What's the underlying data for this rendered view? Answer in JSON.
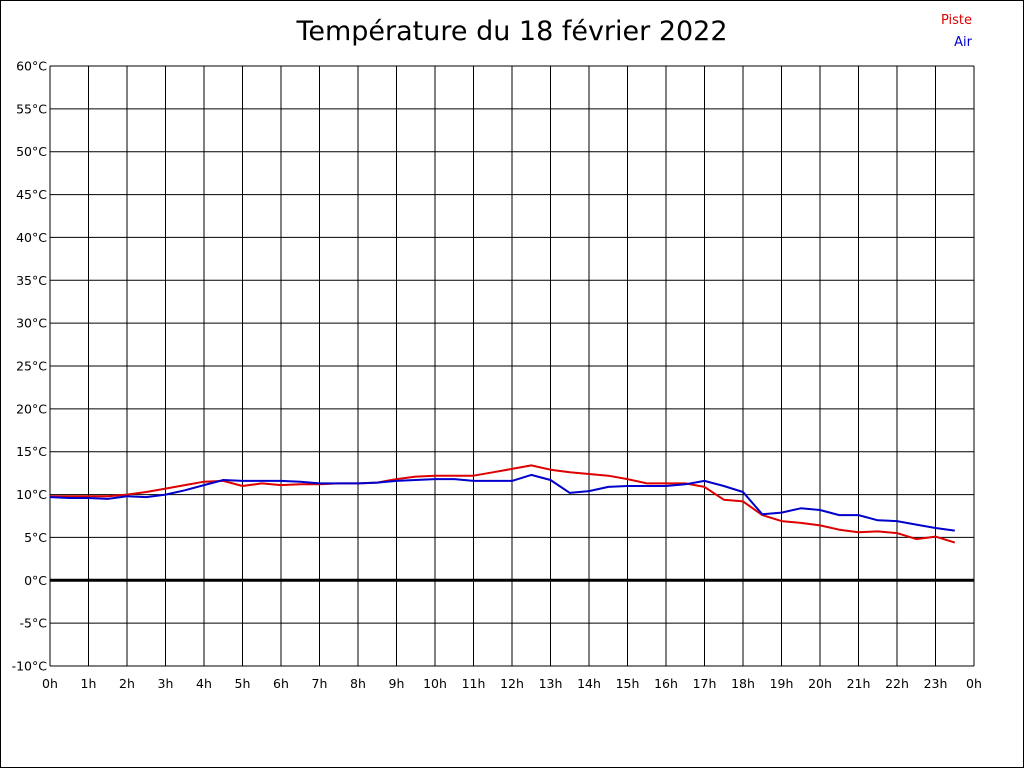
{
  "chart_data": {
    "type": "line",
    "title": "Température du 18 février 2022",
    "x_ticks": [
      "0h",
      "1h",
      "2h",
      "3h",
      "4h",
      "5h",
      "6h",
      "7h",
      "8h",
      "9h",
      "10h",
      "11h",
      "12h",
      "13h",
      "14h",
      "15h",
      "16h",
      "17h",
      "18h",
      "19h",
      "20h",
      "21h",
      "22h",
      "23h",
      "0h"
    ],
    "y_ticks": [
      "60°C",
      "55°C",
      "50°C",
      "45°C",
      "40°C",
      "35°C",
      "30°C",
      "25°C",
      "20°C",
      "15°C",
      "10°C",
      "5°C",
      "0°C",
      "-5°C",
      "-10°C"
    ],
    "xlim": [
      0,
      24
    ],
    "ylim": [
      -10,
      60
    ],
    "grid": true,
    "legend_position": "top-right",
    "series": [
      {
        "name": "Piste",
        "color": "#dd0000",
        "points": [
          [
            0,
            9.8
          ],
          [
            0.5,
            9.8
          ],
          [
            1,
            9.8
          ],
          [
            1.5,
            9.8
          ],
          [
            2,
            10.0
          ],
          [
            2.5,
            10.3
          ],
          [
            3,
            10.7
          ],
          [
            3.5,
            11.1
          ],
          [
            4,
            11.5
          ],
          [
            4.5,
            11.6
          ],
          [
            5,
            11.0
          ],
          [
            5.5,
            11.3
          ],
          [
            6,
            11.1
          ],
          [
            6.5,
            11.2
          ],
          [
            7,
            11.2
          ],
          [
            7.5,
            11.3
          ],
          [
            8,
            11.3
          ],
          [
            8.5,
            11.4
          ],
          [
            9,
            11.8
          ],
          [
            9.5,
            12.1
          ],
          [
            10,
            12.2
          ],
          [
            10.5,
            12.2
          ],
          [
            11,
            12.2
          ],
          [
            11.5,
            12.6
          ],
          [
            12,
            13.0
          ],
          [
            12.5,
            13.4
          ],
          [
            13,
            12.9
          ],
          [
            13.5,
            12.6
          ],
          [
            14,
            12.4
          ],
          [
            14.5,
            12.2
          ],
          [
            15,
            11.8
          ],
          [
            15.5,
            11.3
          ],
          [
            16,
            11.3
          ],
          [
            16.5,
            11.3
          ],
          [
            17,
            10.9
          ],
          [
            17.5,
            9.4
          ],
          [
            18,
            9.2
          ],
          [
            18.5,
            7.6
          ],
          [
            19,
            6.9
          ],
          [
            19.5,
            6.7
          ],
          [
            20,
            6.4
          ],
          [
            20.5,
            5.9
          ],
          [
            21,
            5.6
          ],
          [
            21.5,
            5.7
          ],
          [
            22,
            5.5
          ],
          [
            22.5,
            4.8
          ],
          [
            23,
            5.1
          ],
          [
            23.5,
            4.4
          ]
        ]
      },
      {
        "name": "Air",
        "color": "#0000cc",
        "points": [
          [
            0,
            9.7
          ],
          [
            0.5,
            9.6
          ],
          [
            1,
            9.6
          ],
          [
            1.5,
            9.5
          ],
          [
            2,
            9.8
          ],
          [
            2.5,
            9.7
          ],
          [
            3,
            10.0
          ],
          [
            3.5,
            10.5
          ],
          [
            4,
            11.1
          ],
          [
            4.5,
            11.7
          ],
          [
            5,
            11.6
          ],
          [
            5.5,
            11.6
          ],
          [
            6,
            11.6
          ],
          [
            6.5,
            11.5
          ],
          [
            7,
            11.3
          ],
          [
            7.5,
            11.3
          ],
          [
            8,
            11.3
          ],
          [
            8.5,
            11.4
          ],
          [
            9,
            11.6
          ],
          [
            9.5,
            11.7
          ],
          [
            10,
            11.8
          ],
          [
            10.5,
            11.8
          ],
          [
            11,
            11.6
          ],
          [
            11.5,
            11.6
          ],
          [
            12,
            11.6
          ],
          [
            12.5,
            12.3
          ],
          [
            13,
            11.7
          ],
          [
            13.5,
            10.2
          ],
          [
            14,
            10.4
          ],
          [
            14.5,
            10.9
          ],
          [
            15,
            11.0
          ],
          [
            15.5,
            11.0
          ],
          [
            16,
            11.0
          ],
          [
            16.5,
            11.2
          ],
          [
            17,
            11.6
          ],
          [
            17.5,
            11.0
          ],
          [
            18,
            10.3
          ],
          [
            18.5,
            7.7
          ],
          [
            19,
            7.9
          ],
          [
            19.5,
            8.4
          ],
          [
            20,
            8.2
          ],
          [
            20.5,
            7.6
          ],
          [
            21,
            7.6
          ],
          [
            21.5,
            7.0
          ],
          [
            22,
            6.9
          ],
          [
            22.5,
            6.5
          ],
          [
            23,
            6.1
          ],
          [
            23.5,
            5.8
          ]
        ]
      }
    ]
  }
}
